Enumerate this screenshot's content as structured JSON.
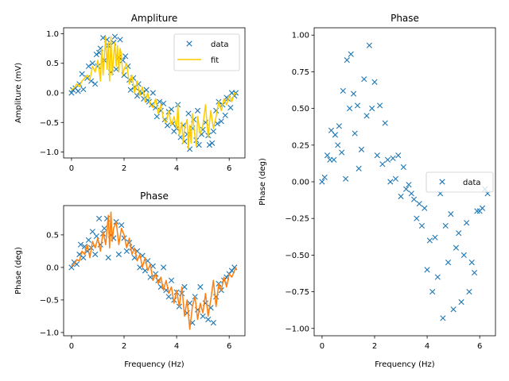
{
  "colors": {
    "data": "#1f77b4",
    "fit_top": "#ffcc00",
    "fit_bottom": "#ff7f0e",
    "axis": "#000000",
    "legend_edge": "#cccccc"
  },
  "chart_data": [
    {
      "id": "top-left",
      "type": "line",
      "title": "Ampliture",
      "xlabel": "",
      "ylabel": "Ampliture (mV)",
      "xlim": [
        -0.3,
        6.6
      ],
      "ylim": [
        -1.1,
        1.1
      ],
      "xticks": [
        0,
        2,
        4,
        6
      ],
      "yticks": [
        -1.0,
        -0.5,
        0.0,
        0.5,
        1.0
      ],
      "ytick_labels": [
        "−1.0",
        "−0.5",
        "0.0",
        "0.5",
        "1.0"
      ],
      "legend": {
        "position": "upper right",
        "entries": [
          "data",
          "fit"
        ]
      },
      "series": [
        {
          "name": "data",
          "marker": "x",
          "style": "markers",
          "x": [
            0.0,
            0.05,
            0.15,
            0.25,
            0.3,
            0.4,
            0.45,
            0.6,
            0.65,
            0.75,
            0.8,
            0.9,
            0.95,
            1.0,
            1.05,
            1.1,
            1.2,
            1.25,
            1.35,
            1.4,
            1.5,
            1.6,
            1.65,
            1.7,
            1.8,
            1.85,
            1.95,
            2.0,
            2.05,
            2.15,
            2.2,
            2.25,
            2.35,
            2.4,
            2.5,
            2.55,
            2.6,
            2.7,
            2.75,
            2.85,
            2.9,
            2.95,
            3.05,
            3.1,
            3.2,
            3.25,
            3.35,
            3.4,
            3.5,
            3.55,
            3.65,
            3.7,
            3.8,
            3.85,
            3.9,
            4.0,
            4.05,
            4.15,
            4.25,
            4.3,
            4.4,
            4.45,
            4.5,
            4.6,
            4.65,
            4.75,
            4.8,
            4.85,
            4.95,
            5.0,
            5.1,
            5.2,
            5.25,
            5.35,
            5.4,
            5.5,
            5.55,
            5.6,
            5.7,
            5.75,
            5.85,
            5.9,
            5.95,
            6.05,
            6.1,
            6.2,
            6.25
          ],
          "y": [
            0.0,
            0.05,
            0.08,
            0.03,
            0.15,
            0.32,
            0.06,
            0.25,
            0.45,
            0.2,
            0.5,
            0.15,
            0.65,
            0.45,
            0.68,
            0.75,
            0.93,
            0.55,
            0.9,
            0.8,
            0.35,
            0.85,
            0.95,
            0.4,
            0.6,
            0.9,
            0.55,
            0.3,
            0.62,
            0.45,
            0.22,
            0.05,
            0.25,
            0.1,
            -0.05,
            0.15,
            0.02,
            0.0,
            -0.1,
            0.05,
            -0.12,
            -0.15,
            -0.2,
            0.0,
            -0.25,
            -0.4,
            -0.15,
            -0.3,
            -0.18,
            -0.45,
            -0.55,
            -0.32,
            -0.28,
            -0.52,
            -0.65,
            -0.6,
            -0.2,
            -0.75,
            -0.55,
            -0.82,
            -0.7,
            -0.35,
            -0.95,
            -0.6,
            -0.45,
            -0.8,
            -0.3,
            -0.88,
            -0.7,
            -0.62,
            -0.5,
            -0.72,
            -0.88,
            -0.85,
            -0.65,
            -0.3,
            -0.52,
            -0.15,
            -0.48,
            -0.2,
            -0.38,
            -0.08,
            -0.1,
            -0.25,
            0.0,
            -0.05,
            0.0
          ]
        },
        {
          "name": "fit",
          "style": "line",
          "x": [
            0.0,
            0.1,
            0.2,
            0.3,
            0.4,
            0.5,
            0.6,
            0.7,
            0.8,
            0.9,
            1.0,
            1.1,
            1.15,
            1.2,
            1.3,
            1.35,
            1.4,
            1.45,
            1.5,
            1.55,
            1.6,
            1.65,
            1.7,
            1.75,
            1.8,
            1.85,
            1.9,
            1.95,
            2.0,
            2.1,
            2.2,
            2.3,
            2.4,
            2.5,
            2.6,
            2.7,
            2.8,
            2.9,
            3.0,
            3.1,
            3.2,
            3.3,
            3.4,
            3.5,
            3.6,
            3.7,
            3.8,
            3.9,
            4.0,
            4.05,
            4.1,
            4.2,
            4.25,
            4.3,
            4.4,
            4.45,
            4.5,
            4.55,
            4.6,
            4.7,
            4.75,
            4.8,
            4.9,
            5.0,
            5.1,
            5.2,
            5.3,
            5.4,
            5.5,
            5.6,
            5.7,
            5.8,
            5.9,
            6.0,
            6.1,
            6.2,
            6.28
          ],
          "y": [
            0.05,
            0.08,
            0.15,
            0.1,
            0.2,
            0.25,
            0.3,
            0.22,
            0.45,
            0.35,
            0.55,
            0.2,
            0.75,
            0.3,
            0.95,
            0.4,
            0.85,
            0.2,
            0.95,
            0.3,
            0.6,
            0.85,
            0.45,
            0.8,
            0.35,
            0.75,
            0.65,
            0.3,
            0.4,
            0.5,
            0.15,
            0.3,
            0.0,
            0.2,
            -0.05,
            0.1,
            -0.15,
            0.0,
            -0.2,
            -0.25,
            -0.1,
            -0.35,
            -0.2,
            -0.45,
            -0.5,
            -0.3,
            -0.55,
            -0.4,
            -0.6,
            -0.2,
            -0.72,
            -0.5,
            -0.85,
            -0.6,
            -0.45,
            -0.95,
            -0.55,
            -0.85,
            -0.35,
            -0.75,
            -0.9,
            -0.4,
            -0.7,
            -0.55,
            -0.2,
            -0.75,
            -0.3,
            -0.6,
            -0.4,
            -0.15,
            -0.3,
            -0.1,
            -0.2,
            -0.05,
            -0.15,
            0.0,
            -0.02
          ]
        }
      ]
    },
    {
      "id": "bottom-left",
      "type": "line",
      "title": "Phase",
      "xlabel": "Frequency (Hz)",
      "ylabel": "Phase (deg)",
      "xlim": [
        -0.3,
        6.6
      ],
      "ylim": [
        -1.05,
        0.95
      ],
      "xticks": [
        0,
        2,
        4,
        6
      ],
      "yticks": [
        -1.0,
        -0.5,
        0.0,
        0.5
      ],
      "ytick_labels": [
        "−1.0",
        "−0.5",
        "0.0",
        "0.5"
      ],
      "series": [
        {
          "name": "",
          "marker": "x",
          "style": "markers",
          "x": [
            0.0,
            0.1,
            0.2,
            0.3,
            0.35,
            0.45,
            0.5,
            0.6,
            0.65,
            0.75,
            0.8,
            0.9,
            0.95,
            1.05,
            1.1,
            1.2,
            1.25,
            1.35,
            1.4,
            1.5,
            1.6,
            1.7,
            1.8,
            1.9,
            2.0,
            2.1,
            2.2,
            2.3,
            2.4,
            2.5,
            2.6,
            2.7,
            2.8,
            2.9,
            3.0,
            3.1,
            3.2,
            3.3,
            3.4,
            3.5,
            3.6,
            3.7,
            3.8,
            3.9,
            4.0,
            4.1,
            4.2,
            4.3,
            4.4,
            4.5,
            4.6,
            4.7,
            4.8,
            4.9,
            5.0,
            5.1,
            5.2,
            5.3,
            5.4,
            5.5,
            5.6,
            5.7,
            5.8,
            5.9,
            6.0,
            6.1,
            6.2
          ],
          "y": [
            0.0,
            0.08,
            0.05,
            0.2,
            0.35,
            0.15,
            0.32,
            0.25,
            0.42,
            0.3,
            0.55,
            0.2,
            0.48,
            0.75,
            0.35,
            0.52,
            0.6,
            0.75,
            0.15,
            0.5,
            0.45,
            0.7,
            0.2,
            0.65,
            0.45,
            0.25,
            0.38,
            0.3,
            0.15,
            0.25,
            0.0,
            0.18,
            -0.05,
            0.1,
            -0.15,
            0.02,
            -0.1,
            -0.2,
            -0.3,
            0.0,
            -0.35,
            -0.45,
            -0.2,
            -0.5,
            -0.38,
            -0.6,
            -0.4,
            -0.3,
            -0.7,
            -0.55,
            -0.85,
            -0.45,
            -0.65,
            -0.3,
            -0.75,
            -0.55,
            -0.8,
            -0.62,
            -0.85,
            -0.45,
            -0.25,
            -0.35,
            -0.2,
            -0.15,
            -0.1,
            -0.05,
            0.0
          ]
        },
        {
          "name": "",
          "style": "line",
          "x": [
            0.0,
            0.1,
            0.2,
            0.3,
            0.4,
            0.5,
            0.6,
            0.7,
            0.8,
            0.9,
            1.0,
            1.1,
            1.2,
            1.3,
            1.4,
            1.45,
            1.5,
            1.55,
            1.6,
            1.7,
            1.8,
            1.9,
            2.0,
            2.1,
            2.2,
            2.3,
            2.4,
            2.5,
            2.6,
            2.7,
            2.8,
            2.9,
            3.0,
            3.1,
            3.2,
            3.3,
            3.4,
            3.5,
            3.6,
            3.7,
            3.8,
            3.9,
            4.0,
            4.1,
            4.2,
            4.3,
            4.4,
            4.5,
            4.6,
            4.7,
            4.8,
            4.9,
            5.0,
            5.1,
            5.2,
            5.3,
            5.4,
            5.5,
            5.6,
            5.7,
            5.8,
            5.9,
            6.0,
            6.1,
            6.2,
            6.28
          ],
          "y": [
            0.02,
            0.05,
            0.12,
            0.1,
            0.25,
            0.2,
            0.35,
            0.15,
            0.4,
            0.3,
            0.45,
            0.25,
            0.55,
            0.35,
            0.8,
            0.3,
            0.85,
            0.4,
            0.6,
            0.7,
            0.35,
            0.6,
            0.5,
            0.3,
            0.45,
            0.2,
            0.3,
            0.1,
            0.2,
            0.0,
            0.15,
            -0.05,
            0.05,
            -0.2,
            -0.1,
            -0.25,
            -0.15,
            -0.35,
            -0.2,
            -0.4,
            -0.3,
            -0.55,
            -0.35,
            -0.6,
            -0.3,
            -0.75,
            -0.5,
            -0.95,
            -0.6,
            -0.45,
            -0.8,
            -0.55,
            -0.7,
            -0.4,
            -0.75,
            -0.5,
            -0.2,
            -0.6,
            -0.25,
            -0.35,
            -0.15,
            -0.3,
            -0.1,
            -0.15,
            -0.05,
            0.0
          ]
        }
      ]
    },
    {
      "id": "right",
      "type": "scatter",
      "title": "Phase",
      "xlabel": "Frequency (Hz)",
      "ylabel": "Phase (deg)",
      "xlim": [
        -0.3,
        6.6
      ],
      "ylim": [
        -1.05,
        1.05
      ],
      "xticks": [
        0,
        2,
        4,
        6
      ],
      "yticks": [
        -1.0,
        -0.75,
        -0.5,
        -0.25,
        0.0,
        0.25,
        0.5,
        0.75,
        1.0
      ],
      "ytick_labels": [
        "−1.00",
        "−0.75",
        "−0.50",
        "−0.25",
        "0.00",
        "0.25",
        "0.50",
        "0.75",
        "1.00"
      ],
      "legend": {
        "position": "center right",
        "entries": [
          "data"
        ]
      },
      "series": [
        {
          "name": "data",
          "marker": "x",
          "style": "markers",
          "x": [
            0.0,
            0.1,
            0.2,
            0.3,
            0.35,
            0.45,
            0.5,
            0.6,
            0.65,
            0.75,
            0.8,
            0.9,
            0.95,
            1.05,
            1.1,
            1.2,
            1.25,
            1.35,
            1.4,
            1.5,
            1.6,
            1.7,
            1.8,
            1.9,
            2.0,
            2.1,
            2.2,
            2.3,
            2.4,
            2.5,
            2.6,
            2.7,
            2.8,
            2.9,
            3.0,
            3.1,
            3.2,
            3.3,
            3.4,
            3.5,
            3.6,
            3.7,
            3.8,
            3.9,
            4.0,
            4.1,
            4.2,
            4.3,
            4.4,
            4.5,
            4.6,
            4.7,
            4.8,
            4.9,
            5.0,
            5.1,
            5.2,
            5.3,
            5.4,
            5.5,
            5.6,
            5.7,
            5.8,
            5.9,
            6.0,
            6.1,
            6.2,
            6.3
          ],
          "y": [
            0.0,
            0.03,
            0.18,
            0.15,
            0.35,
            0.15,
            0.32,
            0.25,
            0.38,
            0.2,
            0.62,
            0.02,
            0.83,
            0.5,
            0.87,
            0.6,
            0.33,
            0.52,
            0.09,
            0.22,
            0.7,
            0.45,
            0.93,
            0.5,
            0.68,
            0.18,
            0.52,
            0.12,
            0.4,
            0.15,
            0.0,
            0.16,
            0.02,
            0.18,
            -0.1,
            0.1,
            -0.05,
            -0.02,
            -0.08,
            -0.12,
            -0.25,
            -0.15,
            -0.3,
            -0.18,
            -0.6,
            -0.4,
            -0.75,
            -0.38,
            -0.65,
            -0.08,
            -0.93,
            -0.3,
            -0.55,
            -0.22,
            -0.87,
            -0.45,
            -0.35,
            -0.82,
            -0.5,
            -0.28,
            -0.75,
            -0.55,
            -0.62,
            -0.2,
            -0.2,
            -0.18,
            -0.05,
            -0.08
          ]
        }
      ]
    }
  ]
}
